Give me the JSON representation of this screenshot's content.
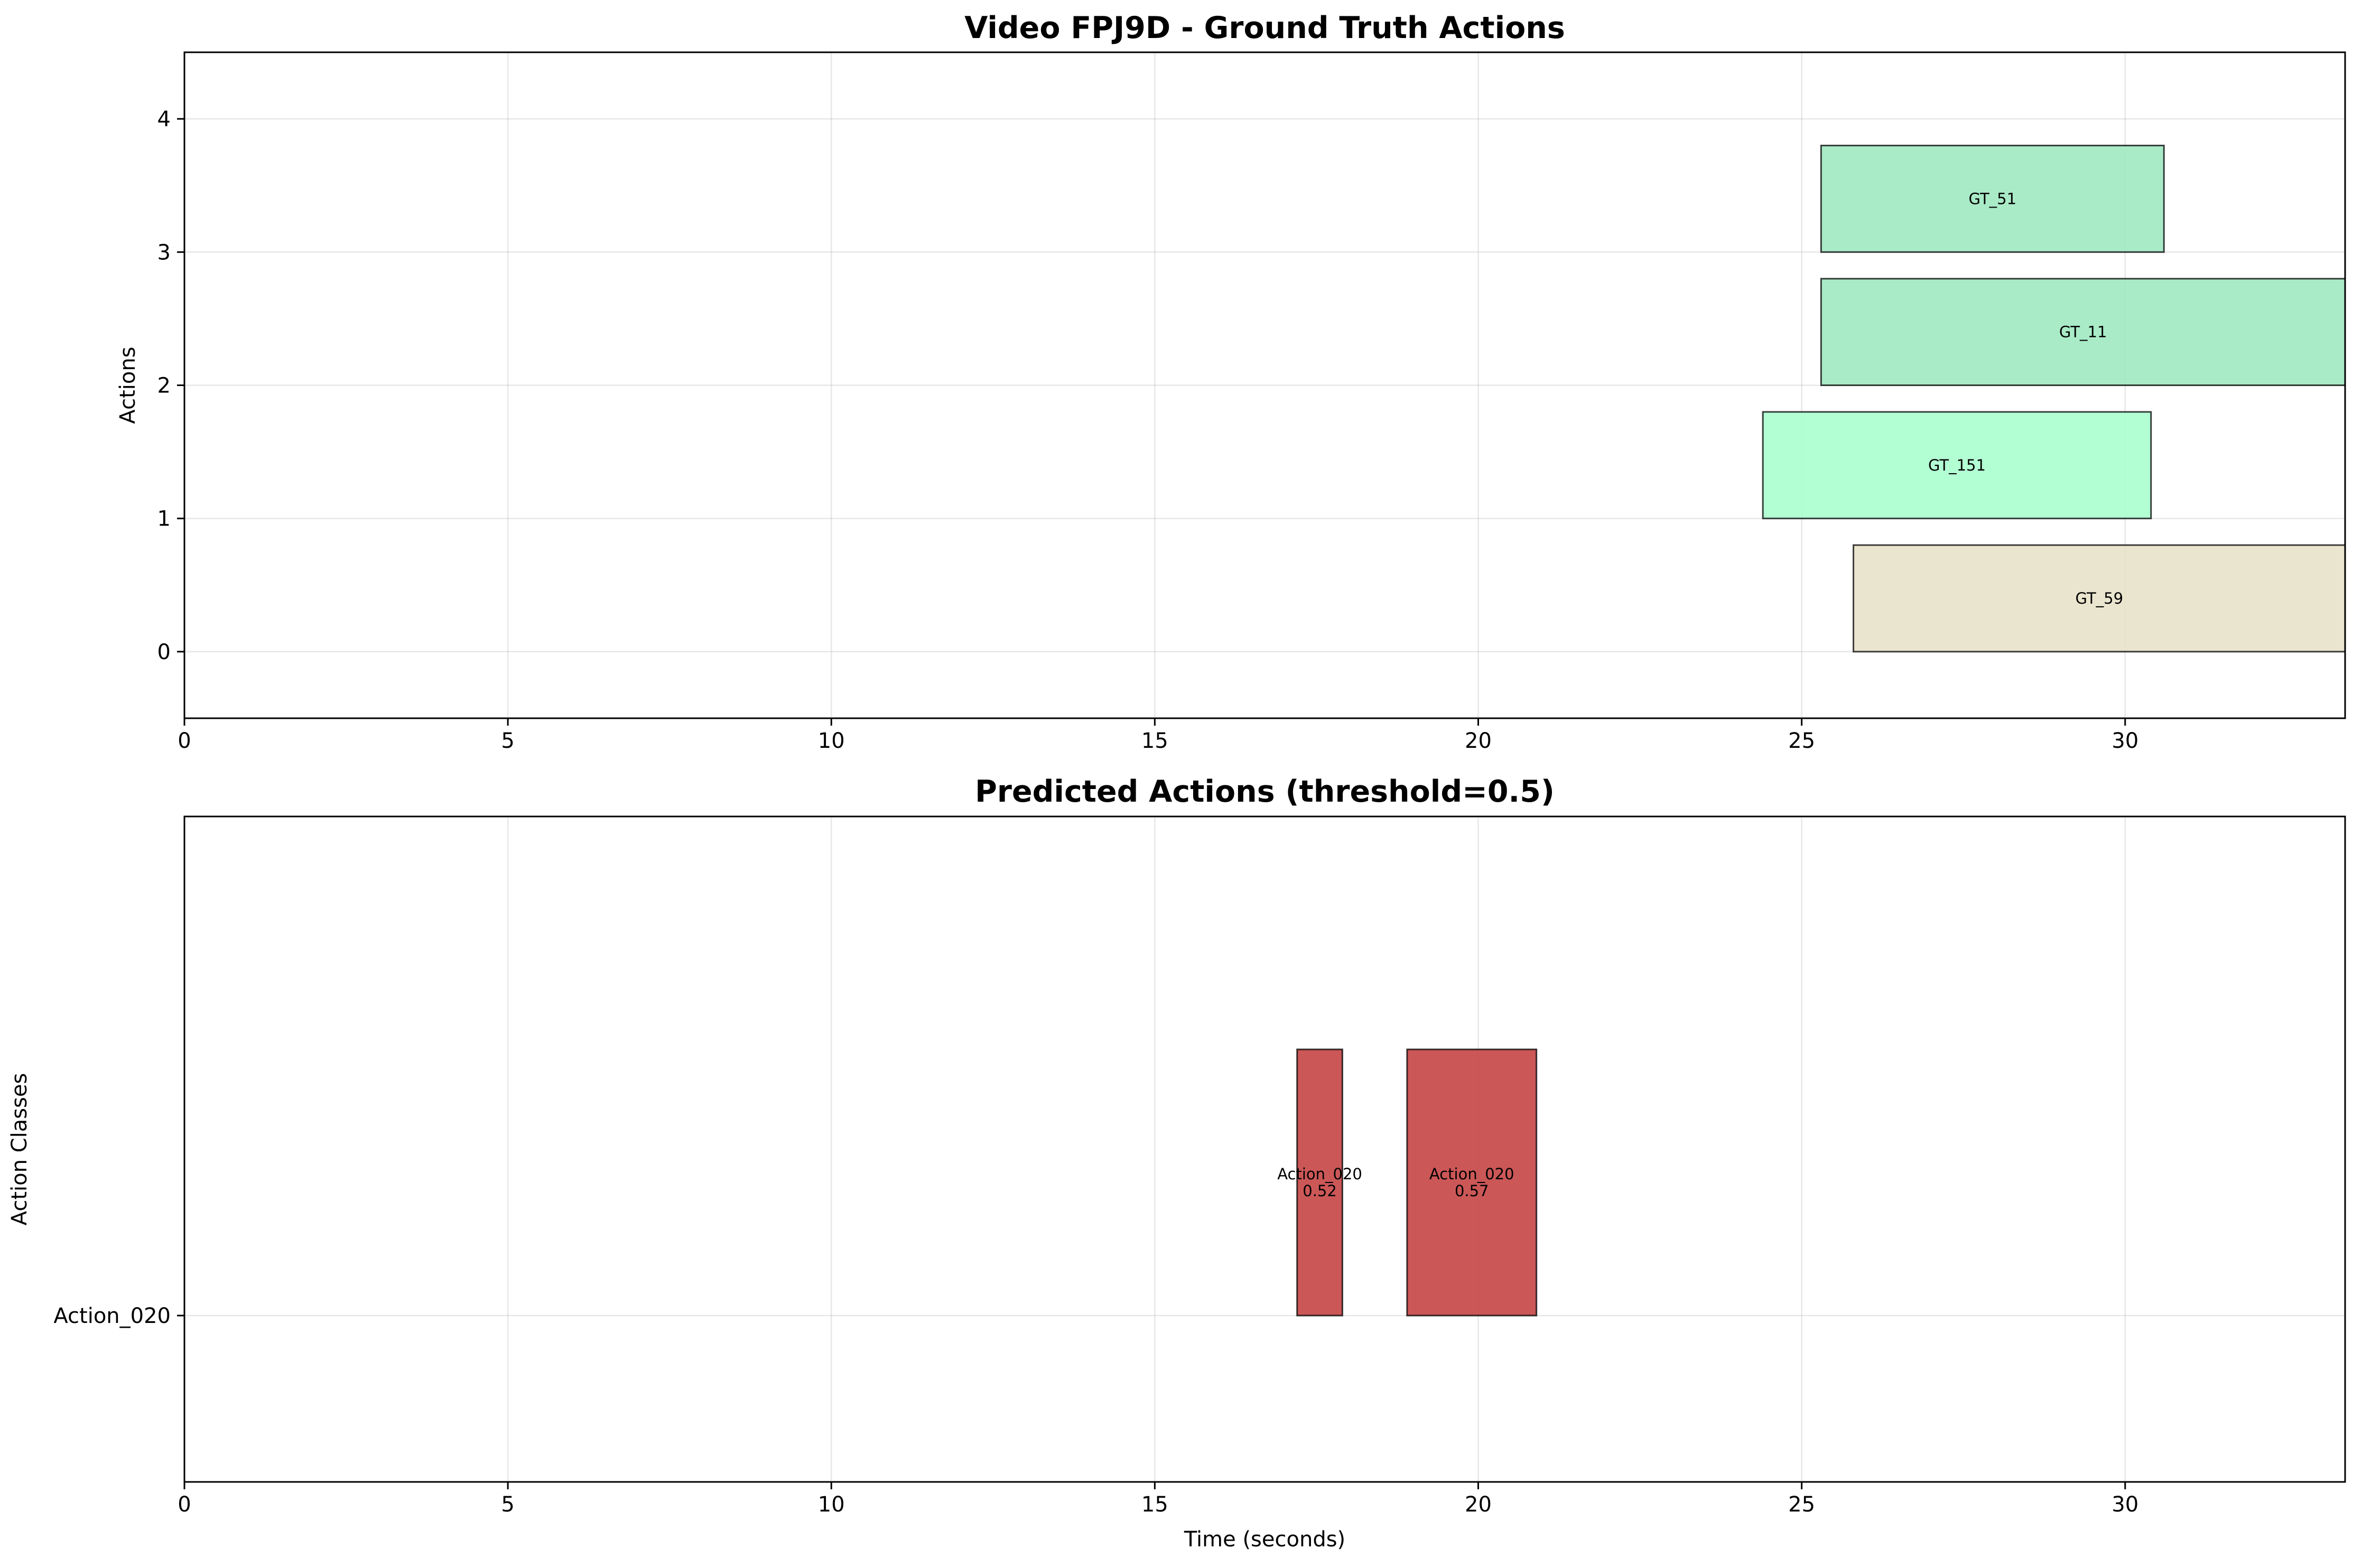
{
  "chart_data": [
    {
      "type": "timeline",
      "title": "Video FPJ9D - Ground Truth Actions",
      "xlabel": "",
      "ylabel": "Actions",
      "xlim": [
        0,
        33.4
      ],
      "ylim": [
        -0.5,
        4.5
      ],
      "x_ticks": [
        "0",
        "5",
        "10",
        "15",
        "20",
        "25",
        "30"
      ],
      "y_ticks": [
        "0",
        "1",
        "2",
        "3",
        "4"
      ],
      "grid": true,
      "bars": [
        {
          "label": "GT_59",
          "start": 25.8,
          "end": 33.4,
          "y": 0,
          "height": 0.8,
          "color": "#e6e0c6"
        },
        {
          "label": "GT_151",
          "start": 24.4,
          "end": 30.4,
          "y": 1,
          "height": 0.8,
          "color": "#a6ffcc"
        },
        {
          "label": "GT_11",
          "start": 25.3,
          "end": 33.4,
          "y": 2,
          "height": 0.8,
          "color": "#9ae8bd"
        },
        {
          "label": "GT_51",
          "start": 25.3,
          "end": 30.6,
          "y": 3,
          "height": 0.8,
          "color": "#9ae8bd"
        }
      ]
    },
    {
      "type": "timeline",
      "title": "Predicted Actions (threshold=0.5)",
      "xlabel": "Time (seconds)",
      "ylabel": "Action Classes",
      "xlim": [
        0,
        33.4
      ],
      "ylim": [
        -0.5,
        1.5
      ],
      "x_ticks": [
        "0",
        "5",
        "10",
        "15",
        "20",
        "25",
        "30"
      ],
      "y_ticks": [
        "Action_020"
      ],
      "grid": true,
      "bars": [
        {
          "label": "Action_020",
          "score": "0.52",
          "start": 17.2,
          "end": 17.9,
          "y": 0,
          "height": 0.8,
          "color": "#c84e4e"
        },
        {
          "label": "Action_020",
          "score": "0.57",
          "start": 18.9,
          "end": 20.9,
          "y": 0,
          "height": 0.8,
          "color": "#c84e4e"
        }
      ]
    }
  ]
}
